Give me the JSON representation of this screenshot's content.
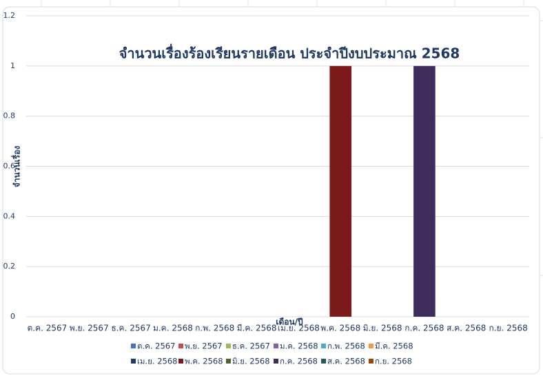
{
  "chart_data": {
    "type": "bar",
    "title": "จำนวนเรื่องร้องเรียนรายเดือน ประจำปีงบประมาณ 2568",
    "x_label": "เดือน/ปี",
    "y_label": "จำนวนเรื่อง",
    "categories": [
      "ต.ค. 2567",
      "พ.ย. 2567",
      "ธ.ค. 2567",
      "ม.ค. 2568",
      "ก.พ. 2568",
      "มี.ค. 2568",
      "เม.ย. 2568",
      "พ.ค. 2568",
      "มิ.ย. 2568",
      "ก.ค. 2568",
      "ส.ค. 2568",
      "ก.ย. 2568"
    ],
    "values": [
      0,
      0,
      0,
      0,
      0,
      0,
      0,
      1,
      0,
      1,
      0,
      0
    ],
    "colors": [
      "#4472c4",
      "#c0504d",
      "#9bbb59",
      "#8064a2",
      "#4bacc6",
      "#f79646",
      "#1f3864",
      "#7b1a1a",
      "#4f6228",
      "#3f2d5c",
      "#215968",
      "#984807"
    ],
    "ylim": [
      0,
      1.2
    ],
    "yticks": [
      0,
      0.2,
      0.4,
      0.6,
      0.8,
      1,
      1.2
    ],
    "grid": true,
    "legend": "bottom"
  }
}
